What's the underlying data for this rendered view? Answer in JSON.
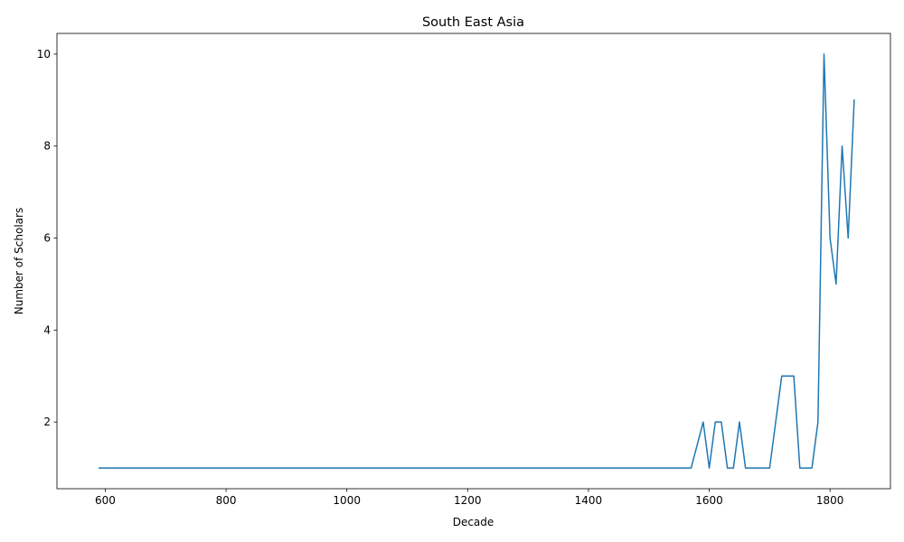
{
  "chart_data": {
    "type": "line",
    "title": "South East Asia",
    "xlabel": "Decade",
    "ylabel": "Number of Scholars",
    "xlim": [
      520,
      1900
    ],
    "ylim": [
      0.55,
      10.45
    ],
    "xticks": [
      600,
      800,
      1000,
      1200,
      1400,
      1600,
      1800
    ],
    "yticks": [
      2,
      4,
      6,
      8,
      10
    ],
    "grid": false,
    "legend": "none",
    "line_color": "#1f77b4",
    "series": [
      {
        "x": [
          590,
          1570,
          1590,
          1600,
          1610,
          1620,
          1630,
          1640,
          1650,
          1660,
          1670,
          1680,
          1690,
          1700,
          1710,
          1720,
          1730,
          1740,
          1750,
          1760,
          1770,
          1780,
          1790,
          1800,
          1810,
          1820,
          1830,
          1840
        ],
        "y": [
          1,
          1,
          2,
          1,
          2,
          2,
          1,
          1,
          2,
          1,
          1,
          1,
          1,
          1,
          2,
          3,
          3,
          3,
          1,
          1,
          1,
          2,
          10,
          6,
          5,
          8,
          6,
          9
        ]
      }
    ]
  }
}
